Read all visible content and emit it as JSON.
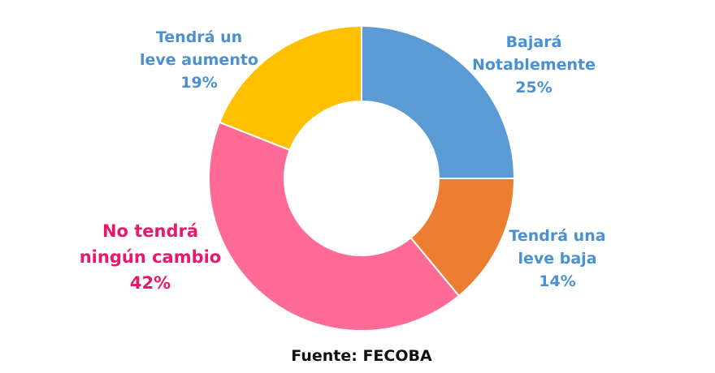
{
  "chart_data": {
    "type": "pie",
    "donut": true,
    "start_angle_deg": 0,
    "direction": "clockwise",
    "slices": [
      {
        "label_lines": [
          "Bajará",
          "Notablemente"
        ],
        "value": 25,
        "value_label": "25%",
        "color": "#5b9bd5",
        "label_color": "#4a90d2"
      },
      {
        "label_lines": [
          "Tendrá una",
          "leve baja"
        ],
        "value": 14,
        "value_label": "14%",
        "color": "#ed7d31",
        "label_color": "#4a90d2"
      },
      {
        "label_lines": [
          "No tendrá",
          "ningún cambio"
        ],
        "value": 42,
        "value_label": "42%",
        "color": "#ff6b95",
        "label_color": "#e8196a"
      },
      {
        "label_lines": [
          "Tendrá un",
          "leve aumento"
        ],
        "value": 19,
        "value_label": "19%",
        "color": "#ffc000",
        "label_color": "#4a90d2"
      }
    ],
    "source": "Fuente: FECOBA"
  }
}
